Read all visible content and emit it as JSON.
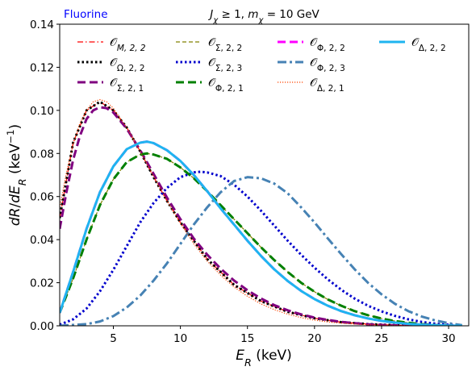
{
  "chart_data": {
    "type": "line",
    "title": "J_χ ≥ 1, m_χ = 10 GeV",
    "corner_label": "Fluorine",
    "xlabel": "E_R (keV)",
    "ylabel": "dR/dE_R (keV^-1)",
    "xlim": [
      1.0,
      31.5
    ],
    "ylim": [
      0.0,
      0.14
    ],
    "xticks": [
      5,
      10,
      15,
      20,
      25,
      30
    ],
    "yticks": [
      "0.00",
      "0.02",
      "0.04",
      "0.06",
      "0.08",
      "0.10",
      "0.12",
      "0.14"
    ],
    "grid": false,
    "legend_position": "top",
    "series": [
      {
        "name": "O_{M,2,2}",
        "color": "#ff0000",
        "style": "dashdot-thin",
        "x": [
          1,
          2,
          3,
          4,
          5,
          6,
          7,
          8,
          9,
          10,
          12,
          14,
          16,
          18,
          20,
          22,
          24,
          26,
          28,
          30
        ],
        "y": [
          0.05,
          0.085,
          0.1,
          0.104,
          0.1,
          0.092,
          0.081,
          0.069,
          0.058,
          0.048,
          0.031,
          0.019,
          0.0115,
          0.0065,
          0.0035,
          0.0017,
          0.0008,
          0.0003,
          0.0001,
          0.0
        ]
      },
      {
        "name": "O_{Ω,2,2}",
        "color": "#000000",
        "style": "dotted-thick",
        "x": [
          1,
          2,
          3,
          4,
          5,
          6,
          7,
          8,
          9,
          10,
          12,
          14,
          16,
          18,
          20,
          22,
          24,
          26,
          28,
          30
        ],
        "y": [
          0.05,
          0.085,
          0.1,
          0.104,
          0.1,
          0.092,
          0.081,
          0.069,
          0.058,
          0.048,
          0.031,
          0.019,
          0.0115,
          0.0065,
          0.0035,
          0.0017,
          0.0008,
          0.0003,
          0.0001,
          0.0
        ]
      },
      {
        "name": "O_{Σ,2,1}",
        "color": "#800080",
        "style": "dashed-thick",
        "x": [
          1,
          1.5,
          2,
          2.5,
          3,
          3.5,
          4,
          4.5,
          5,
          6,
          7,
          8,
          9,
          10,
          11,
          12,
          13,
          14,
          15,
          16,
          17,
          18,
          19,
          20,
          21,
          22,
          23,
          24,
          25,
          26,
          27,
          28
        ],
        "y": [
          0.045,
          0.062,
          0.077,
          0.088,
          0.096,
          0.1,
          0.1015,
          0.101,
          0.099,
          0.0915,
          0.0815,
          0.0705,
          0.0595,
          0.0495,
          0.0405,
          0.033,
          0.0265,
          0.021,
          0.0165,
          0.0127,
          0.0096,
          0.0072,
          0.0053,
          0.0038,
          0.0027,
          0.0018,
          0.0012,
          0.0007,
          0.0004,
          0.0002,
          0.0001,
          0.0
        ]
      },
      {
        "name": "O_{Σ,2,2}",
        "color": "#808000",
        "style": "dashed-thin",
        "x": [
          1,
          2,
          3,
          4,
          5,
          6,
          7,
          7.5,
          8,
          9,
          10,
          11,
          12,
          13,
          14,
          15,
          16,
          17,
          18,
          19,
          20,
          21,
          22,
          23,
          24,
          25,
          26,
          27,
          28,
          29,
          30,
          31
        ],
        "y": [
          0.006,
          0.022,
          0.04,
          0.056,
          0.068,
          0.076,
          0.0795,
          0.08,
          0.0795,
          0.0775,
          0.0735,
          0.0685,
          0.0625,
          0.056,
          0.0495,
          0.043,
          0.0365,
          0.0305,
          0.025,
          0.02,
          0.0158,
          0.0122,
          0.0093,
          0.0068,
          0.0049,
          0.0034,
          0.0022,
          0.0014,
          0.0008,
          0.0004,
          0.0002,
          0.0
        ]
      },
      {
        "name": "O_{Σ,2,3}",
        "color": "#0000cd",
        "style": "dotted-thick",
        "x": [
          1,
          2,
          3,
          4,
          5,
          6,
          7,
          8,
          9,
          10,
          11,
          11.5,
          12,
          13,
          14,
          15,
          16,
          17,
          18,
          19,
          20,
          21,
          22,
          23,
          24,
          25,
          26,
          27,
          28,
          29,
          30,
          31
        ],
        "y": [
          0.0005,
          0.003,
          0.008,
          0.016,
          0.026,
          0.037,
          0.048,
          0.057,
          0.064,
          0.069,
          0.0712,
          0.0715,
          0.0712,
          0.0695,
          0.0655,
          0.06,
          0.0535,
          0.0465,
          0.0395,
          0.033,
          0.027,
          0.0215,
          0.0167,
          0.0126,
          0.0093,
          0.0067,
          0.0046,
          0.003,
          0.0018,
          0.001,
          0.0005,
          0.0
        ]
      },
      {
        "name": "O_{Φ,2,1}",
        "color": "#008000",
        "style": "dashed-thick",
        "x": [
          1,
          2,
          3,
          4,
          5,
          6,
          7,
          7.5,
          8,
          9,
          10,
          11,
          12,
          13,
          14,
          15,
          16,
          17,
          18,
          19,
          20,
          21,
          22,
          23,
          24,
          25,
          26,
          27,
          28,
          29,
          30,
          31
        ],
        "y": [
          0.006,
          0.022,
          0.04,
          0.056,
          0.068,
          0.076,
          0.0795,
          0.08,
          0.0795,
          0.0775,
          0.0735,
          0.0685,
          0.0625,
          0.056,
          0.0495,
          0.043,
          0.0365,
          0.0305,
          0.025,
          0.02,
          0.0158,
          0.0122,
          0.0093,
          0.0068,
          0.0049,
          0.0034,
          0.0022,
          0.0014,
          0.0008,
          0.0004,
          0.0002,
          0.0
        ]
      },
      {
        "name": "O_{Φ,2,2}",
        "color": "#ff00ff",
        "style": "dashed-thick",
        "x": [
          1,
          2,
          3,
          4,
          5,
          6,
          7,
          7.5,
          8,
          9,
          10,
          11,
          12,
          13,
          14,
          15,
          16,
          17,
          18,
          19,
          20,
          21,
          22,
          23,
          24,
          25,
          26,
          27,
          28,
          29,
          30,
          31
        ],
        "y": [
          0.006,
          0.025,
          0.045,
          0.062,
          0.074,
          0.082,
          0.085,
          0.0855,
          0.0848,
          0.0815,
          0.0765,
          0.07,
          0.0625,
          0.0545,
          0.047,
          0.0395,
          0.0325,
          0.0262,
          0.0208,
          0.0162,
          0.0124,
          0.0093,
          0.0068,
          0.0049,
          0.0034,
          0.0023,
          0.0015,
          0.0009,
          0.0005,
          0.0003,
          0.0001,
          0.0
        ]
      },
      {
        "name": "O_{Φ,2,3}",
        "color": "#4682b4",
        "style": "dashdot-thick",
        "x": [
          1,
          3,
          4,
          5,
          6,
          7,
          8,
          9,
          10,
          11,
          12,
          13,
          14,
          15,
          16,
          17,
          18,
          19,
          20,
          21,
          22,
          23,
          24,
          25,
          26,
          27,
          28,
          29,
          30,
          31
        ],
        "y": [
          0.0,
          0.0008,
          0.002,
          0.0045,
          0.0085,
          0.014,
          0.021,
          0.029,
          0.038,
          0.047,
          0.055,
          0.062,
          0.0672,
          0.069,
          0.0685,
          0.066,
          0.0615,
          0.055,
          0.048,
          0.0405,
          0.0332,
          0.0262,
          0.0199,
          0.0146,
          0.0102,
          0.0068,
          0.0043,
          0.0025,
          0.0012,
          0.0003
        ]
      },
      {
        "name": "O_{Δ,2,1}",
        "color": "#ff4500",
        "style": "dotted-thin",
        "x": [
          1,
          1.5,
          2,
          2.5,
          3,
          3.5,
          4,
          4.5,
          5,
          6,
          7,
          8,
          9,
          10,
          11,
          12,
          13,
          14,
          15,
          16,
          17,
          18,
          19,
          20,
          21,
          22,
          23,
          24,
          25,
          26,
          27,
          28
        ],
        "y": [
          0.055,
          0.071,
          0.084,
          0.094,
          0.1,
          0.104,
          0.105,
          0.104,
          0.101,
          0.092,
          0.081,
          0.0695,
          0.058,
          0.0475,
          0.038,
          0.03,
          0.0235,
          0.018,
          0.0137,
          0.0102,
          0.0075,
          0.0054,
          0.0038,
          0.0026,
          0.0018,
          0.0012,
          0.0008,
          0.0005,
          0.0003,
          0.0002,
          0.0001,
          0.0
        ]
      },
      {
        "name": "O_{Δ,2,2}",
        "color": "#1eb4f0",
        "style": "solid-thick",
        "x": [
          1,
          2,
          3,
          4,
          5,
          6,
          7,
          7.5,
          8,
          9,
          10,
          11,
          12,
          13,
          14,
          15,
          16,
          17,
          18,
          19,
          20,
          21,
          22,
          23,
          24,
          25,
          26,
          27,
          28,
          29,
          30,
          31
        ],
        "y": [
          0.006,
          0.025,
          0.045,
          0.062,
          0.074,
          0.082,
          0.085,
          0.0855,
          0.0848,
          0.0815,
          0.0765,
          0.07,
          0.0625,
          0.0545,
          0.047,
          0.0395,
          0.0325,
          0.0262,
          0.0208,
          0.0162,
          0.0124,
          0.0093,
          0.0068,
          0.0049,
          0.0034,
          0.0023,
          0.0015,
          0.0009,
          0.0005,
          0.0003,
          0.0001,
          0.0
        ]
      }
    ]
  }
}
